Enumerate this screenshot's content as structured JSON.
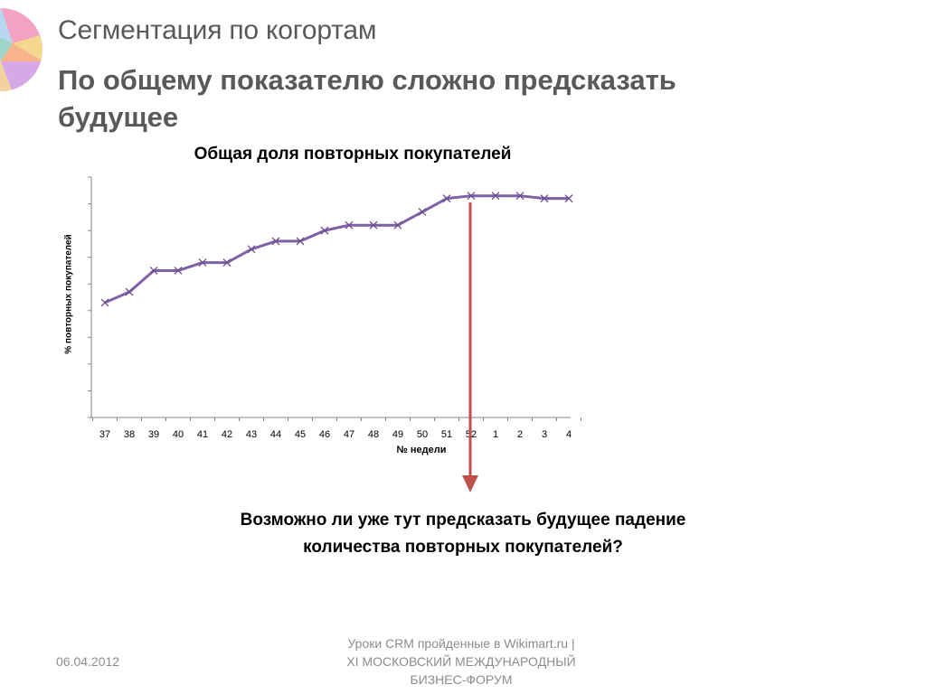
{
  "header": {
    "title": "Сегментация по когортам",
    "subtitle_line1": "По общему показателю сложно предсказать",
    "subtitle_line2": "будущее"
  },
  "chart_data": {
    "type": "line",
    "title": "Общая доля повторных покупателей",
    "xlabel": "№ недели",
    "ylabel": "% повторных покупателей",
    "categories": [
      "37",
      "38",
      "39",
      "40",
      "41",
      "42",
      "43",
      "44",
      "45",
      "46",
      "47",
      "48",
      "49",
      "50",
      "51",
      "52",
      "1",
      "2",
      "3",
      "4"
    ],
    "series": [
      {
        "values": [
          4.3,
          4.7,
          5.5,
          5.5,
          5.8,
          5.8,
          6.3,
          6.6,
          6.6,
          7.0,
          7.2,
          7.2,
          7.2,
          7.7,
          8.2,
          8.3,
          8.3,
          8.3,
          8.2,
          8.2
        ],
        "color": "#7f5fa5",
        "marker": "x"
      }
    ],
    "ylim": [
      0,
      9
    ],
    "y_ticks_labeled": false,
    "grid": false,
    "legend": "none",
    "annotation": {
      "type": "arrow",
      "at_category": "52",
      "direction": "down",
      "color": "#c0504d"
    }
  },
  "question": {
    "line1": "Возможно ли уже тут предсказать будущее падение",
    "line2": "количества повторных покупателей?"
  },
  "footer": {
    "date": "06.04.2012",
    "line1": "Уроки CRM пройденные в Wikimart.ru |",
    "line2": "XI МОСКОВСКИЙ МЕЖДУНАРОДНЫЙ",
    "line3": "БИЗНЕС-ФОРУМ"
  }
}
